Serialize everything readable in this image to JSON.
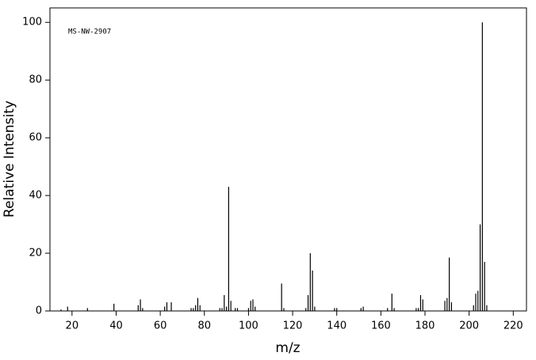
{
  "chart_data": {
    "type": "stick",
    "annotation": "MS-NW-2907",
    "x_label": "m/z",
    "y_label": "Relative Intensity",
    "x": [
      15,
      18,
      27,
      39,
      50,
      51,
      52,
      62,
      63,
      65,
      74,
      75,
      76,
      77,
      78,
      87,
      88,
      89,
      90,
      91,
      92,
      94,
      95,
      100,
      101,
      102,
      103,
      115,
      116,
      126,
      127,
      128,
      129,
      130,
      139,
      140,
      151,
      152,
      163,
      165,
      166,
      176,
      177,
      178,
      179,
      189,
      190,
      191,
      192,
      202,
      203,
      204,
      205,
      206,
      207,
      208
    ],
    "values": [
      0.5,
      1.5,
      1,
      2.5,
      2,
      4,
      1,
      1.5,
      3,
      3,
      1,
      1,
      2,
      4.5,
      2,
      1,
      1,
      5.5,
      1.5,
      43,
      3.5,
      1,
      1,
      1,
      3.5,
      4,
      1.5,
      9.5,
      1,
      1,
      5.5,
      20,
      14,
      1.5,
      1,
      1,
      1,
      1.5,
      1,
      6,
      1,
      1,
      1,
      5.5,
      4,
      3.5,
      4.5,
      18.5,
      3,
      2,
      6,
      7,
      30,
      100,
      17,
      2
    ],
    "color": "#000000",
    "xlim": [
      10,
      226
    ],
    "ylim": [
      0,
      105
    ],
    "xticks": [
      20,
      40,
      60,
      80,
      100,
      120,
      140,
      160,
      180,
      200,
      220
    ],
    "yticks": [
      0,
      20,
      40,
      60,
      80,
      100
    ]
  }
}
